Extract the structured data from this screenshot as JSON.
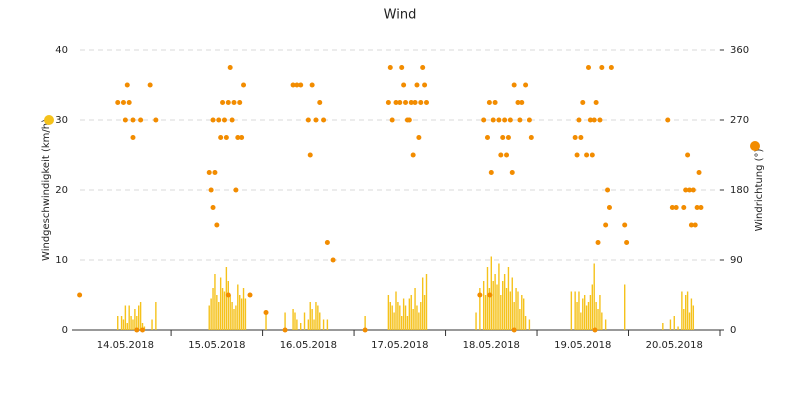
{
  "chart_data": {
    "type": "combo",
    "title": "Wind",
    "ylabel": "Windgeschwindigkeit (km/h)",
    "y2label": "Windrichtung (°)",
    "xlim": [
      -2,
      168
    ],
    "xticks": [
      {
        "value": 12,
        "label": "14.05.2018"
      },
      {
        "value": 36,
        "label": "15.05.2018"
      },
      {
        "value": 60,
        "label": "16.05.2018"
      },
      {
        "value": 84,
        "label": "17.05.2018"
      },
      {
        "value": 108,
        "label": "18.05.2018"
      },
      {
        "value": 132,
        "label": "19.05.2018"
      },
      {
        "value": 156,
        "label": "20.05.2018"
      }
    ],
    "ylim": [
      0,
      40
    ],
    "yticks": [
      0,
      10,
      20,
      30,
      40
    ],
    "y2lim": [
      0,
      360
    ],
    "y2ticks": [
      0,
      90,
      180,
      270,
      360
    ],
    "grid": true,
    "series": [
      {
        "type": "bar",
        "color": "#f5c21b",
        "x": [
          10,
          11,
          11.5,
          12,
          12.5,
          13,
          13.5,
          14,
          14.5,
          15,
          15.5,
          16,
          16.5,
          17,
          19,
          20,
          34,
          34.5,
          35,
          35.5,
          36,
          36.5,
          37,
          37.5,
          38,
          38.5,
          39,
          39.5,
          40,
          40.5,
          41,
          41.5,
          42,
          42.5,
          43,
          43.5,
          48.9,
          53.9,
          56,
          56.5,
          57,
          58,
          59,
          60,
          60.5,
          61,
          61.5,
          62,
          62.5,
          63,
          64,
          65,
          74.9,
          81,
          81.5,
          82,
          82.5,
          83,
          83.5,
          84,
          84.5,
          85,
          85.5,
          86,
          86.5,
          87,
          87.5,
          88,
          88.5,
          89,
          89.5,
          90,
          90.5,
          91,
          104,
          105,
          106,
          106.5,
          107,
          107.5,
          108,
          108.5,
          109,
          109.5,
          110,
          110.5,
          111,
          111.5,
          112,
          112.5,
          113,
          113.5,
          114,
          114.5,
          115,
          115.5,
          116,
          116.5,
          117,
          118,
          129,
          130,
          130.5,
          131,
          131.5,
          132,
          132.5,
          133,
          133.5,
          134,
          134.5,
          135,
          135.5,
          136,
          136.5,
          137,
          138,
          143,
          153,
          155,
          156,
          157,
          158,
          158.5,
          159,
          159.5,
          160,
          160.5,
          161
        ],
        "values": [
          2,
          2,
          1.5,
          3.5,
          1,
          3.5,
          2,
          1.5,
          3,
          2,
          3.5,
          4,
          1,
          0.5,
          1.5,
          4,
          3.5,
          4.5,
          6,
          8,
          5,
          4,
          7.5,
          6,
          5.5,
          9,
          7,
          5,
          4,
          3,
          3.5,
          6.5,
          5,
          4.5,
          6,
          4.5,
          2.5,
          2.5,
          3,
          2.5,
          1.5,
          1,
          2.5,
          1.5,
          4,
          3,
          1.5,
          4,
          3.5,
          2.5,
          1.5,
          1.5,
          2,
          5,
          4,
          3.5,
          2.5,
          5.5,
          4,
          3.5,
          2,
          4.5,
          3.5,
          2,
          4.5,
          5,
          3,
          6,
          3.5,
          2.5,
          4,
          7.5,
          5,
          8,
          2.5,
          6,
          7,
          5,
          9,
          6,
          10.5,
          7,
          8,
          6.5,
          9.5,
          5,
          7,
          8,
          6,
          9,
          5.5,
          7.5,
          4,
          6,
          5.5,
          3,
          5,
          4.5,
          2,
          1.5,
          5.5,
          5.5,
          4,
          5.5,
          2.5,
          4.5,
          5,
          3.5,
          4,
          5,
          6.5,
          9.5,
          4,
          3,
          5,
          2.5,
          1.5,
          6.5,
          1,
          1.5,
          2,
          0.5,
          5.5,
          3,
          5,
          5.5,
          2.5,
          4.5,
          3.5
        ]
      },
      {
        "type": "scatter",
        "axis": "y2",
        "color": "#f28c00",
        "x": [
          0,
          10,
          11.5,
          12.5,
          13,
          12,
          14,
          14,
          15,
          16.5,
          16,
          18.5,
          20,
          34,
          34.5,
          35,
          35.5,
          36,
          35,
          36.5,
          37,
          37.5,
          38,
          38.5,
          39,
          39.5,
          40,
          40.5,
          41,
          41.5,
          42,
          42.5,
          43,
          39,
          44.7,
          48.9,
          53.9,
          56,
          57,
          58,
          60,
          60.5,
          61,
          62,
          63,
          64,
          65,
          66.5,
          74.9,
          81,
          81.5,
          82,
          83,
          84,
          84.5,
          85,
          85.5,
          86,
          86.5,
          87,
          87.5,
          88,
          88.5,
          89,
          89.5,
          90,
          90.5,
          91,
          105,
          107.6,
          106,
          107,
          107.5,
          108,
          108.5,
          109,
          110,
          110.5,
          111,
          111.5,
          112,
          112.5,
          113,
          113.5,
          114,
          114,
          115,
          115.5,
          116,
          117,
          118,
          118.5,
          130,
          130.5,
          131,
          131.5,
          132,
          133,
          133.5,
          134,
          134.5,
          135,
          135.5,
          135.2,
          136,
          136.5,
          137,
          138,
          138.5,
          139,
          139.5,
          143,
          143.5,
          154.3,
          155.5,
          156.5,
          158.5,
          159,
          159.5,
          160,
          160.5,
          161,
          161.5,
          162,
          162.5,
          163
        ],
        "values": [
          45,
          292.5,
          292.5,
          315,
          292.5,
          270,
          270,
          247.5,
          0,
          0,
          270,
          315,
          270,
          202.5,
          180,
          157.5,
          202.5,
          135,
          270,
          270,
          247.5,
          292.5,
          270,
          247.5,
          292.5,
          337.5,
          270,
          292.5,
          180,
          247.5,
          292.5,
          247.5,
          315,
          45,
          45,
          22.5,
          0,
          315,
          315,
          315,
          270,
          225,
          315,
          270,
          292.5,
          270,
          112.5,
          90,
          0,
          292.5,
          337.5,
          270,
          292.5,
          292.5,
          337.5,
          315,
          292.5,
          270,
          270,
          292.5,
          225,
          292.5,
          315,
          247.5,
          292.5,
          337.5,
          315,
          292.5,
          45,
          45,
          270,
          247.5,
          292.5,
          202.5,
          270,
          292.5,
          270,
          225,
          247.5,
          270,
          225,
          247.5,
          270,
          202.5,
          315,
          0,
          292.5,
          270,
          292.5,
          315,
          270,
          247.5,
          247.5,
          225,
          270,
          247.5,
          292.5,
          225,
          337.5,
          270,
          225,
          270,
          292.5,
          0,
          112.5,
          270,
          337.5,
          135,
          180,
          157.5,
          337.5,
          135,
          112.5,
          270,
          157.5,
          157.5,
          157.5,
          180,
          225,
          180,
          135,
          180,
          135,
          157.5,
          202.5,
          157.5
        ]
      }
    ]
  }
}
